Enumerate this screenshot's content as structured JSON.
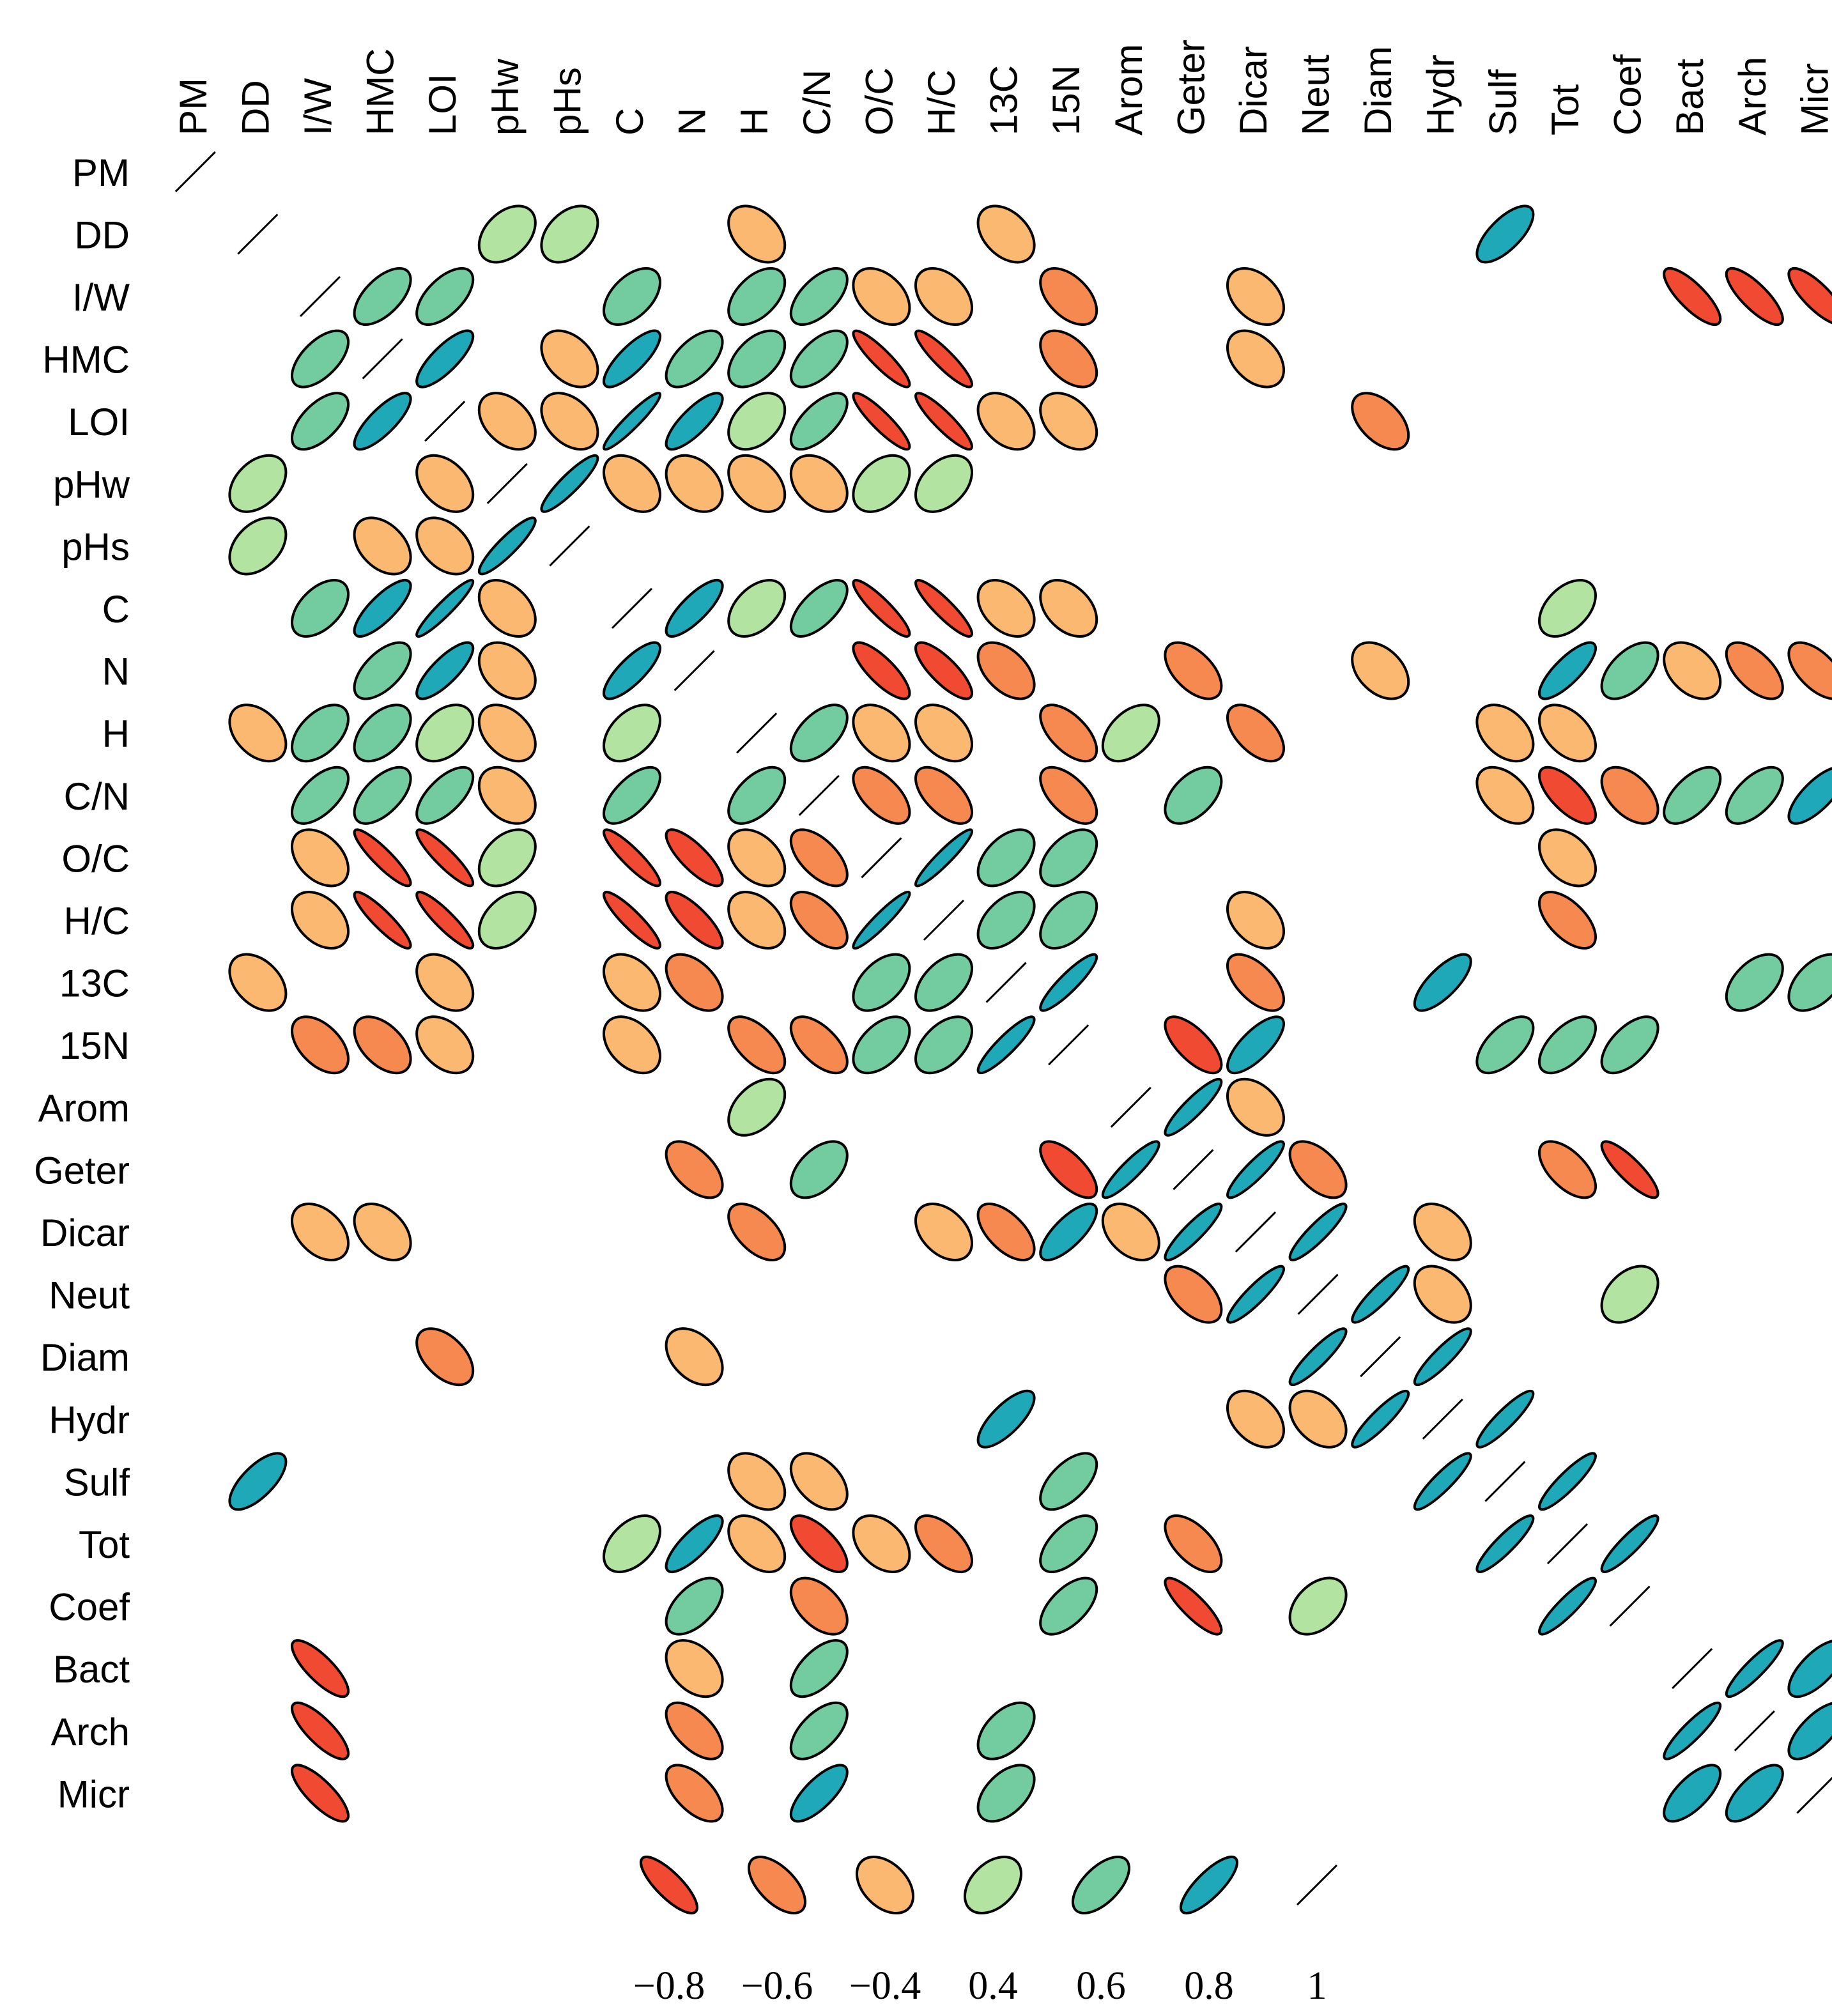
{
  "chart_data": {
    "type": "correlation-matrix",
    "variables": [
      "PM",
      "DD",
      "I/W",
      "HMC",
      "LOI",
      "pHw",
      "pHs",
      "C",
      "N",
      "H",
      "C/N",
      "O/C",
      "H/C",
      "13C",
      "15N",
      "Arom",
      "Geter",
      "Dicar",
      "Neut",
      "Diam",
      "Hydr",
      "Sulf",
      "Tot",
      "Coef",
      "Bact",
      "Arch",
      "Micr"
    ],
    "colors": {
      "-0.8": "#f04a32",
      "-0.6": "#f5894f",
      "-0.4": "#fbb870",
      "0.4": "#b2e3a0",
      "0.6": "#72cc9f",
      "0.8": "#1fa8b8"
    },
    "significant_correlations": [
      {
        "row": "DD",
        "col": "pHw",
        "r": 0.4
      },
      {
        "row": "DD",
        "col": "pHs",
        "r": 0.4
      },
      {
        "row": "DD",
        "col": "H",
        "r": -0.4
      },
      {
        "row": "DD",
        "col": "13C",
        "r": -0.4
      },
      {
        "row": "DD",
        "col": "Sulf",
        "r": 0.7
      },
      {
        "row": "I/W",
        "col": "HMC",
        "r": 0.6
      },
      {
        "row": "I/W",
        "col": "LOI",
        "r": 0.6
      },
      {
        "row": "I/W",
        "col": "C",
        "r": 0.5
      },
      {
        "row": "I/W",
        "col": "H",
        "r": 0.5
      },
      {
        "row": "I/W",
        "col": "C/N",
        "r": 0.6
      },
      {
        "row": "I/W",
        "col": "O/C",
        "r": -0.4
      },
      {
        "row": "I/W",
        "col": "H/C",
        "r": -0.4
      },
      {
        "row": "I/W",
        "col": "15N",
        "r": -0.5
      },
      {
        "row": "I/W",
        "col": "Dicar",
        "r": -0.4
      },
      {
        "row": "I/W",
        "col": "Bact",
        "r": -0.8
      },
      {
        "row": "I/W",
        "col": "Arch",
        "r": -0.8
      },
      {
        "row": "I/W",
        "col": "Micr",
        "r": -0.8
      },
      {
        "row": "HMC",
        "col": "LOI",
        "r": 0.8
      },
      {
        "row": "HMC",
        "col": "pHs",
        "r": -0.4
      },
      {
        "row": "HMC",
        "col": "C",
        "r": 0.8
      },
      {
        "row": "HMC",
        "col": "N",
        "r": 0.6
      },
      {
        "row": "HMC",
        "col": "H",
        "r": 0.5
      },
      {
        "row": "HMC",
        "col": "C/N",
        "r": 0.6
      },
      {
        "row": "HMC",
        "col": "O/C",
        "r": -0.9
      },
      {
        "row": "HMC",
        "col": "H/C",
        "r": -0.9
      },
      {
        "row": "HMC",
        "col": "15N",
        "r": -0.5
      },
      {
        "row": "HMC",
        "col": "Dicar",
        "r": -0.4
      },
      {
        "row": "LOI",
        "col": "pHw",
        "r": -0.4
      },
      {
        "row": "LOI",
        "col": "pHs",
        "r": -0.4
      },
      {
        "row": "LOI",
        "col": "C",
        "r": 0.95
      },
      {
        "row": "LOI",
        "col": "N",
        "r": 0.8
      },
      {
        "row": "LOI",
        "col": "H",
        "r": 0.4
      },
      {
        "row": "LOI",
        "col": "C/N",
        "r": 0.65
      },
      {
        "row": "LOI",
        "col": "O/C",
        "r": -0.9
      },
      {
        "row": "LOI",
        "col": "H/C",
        "r": -0.9
      },
      {
        "row": "LOI",
        "col": "13C",
        "r": -0.4
      },
      {
        "row": "LOI",
        "col": "15N",
        "r": -0.4
      },
      {
        "row": "LOI",
        "col": "Diam",
        "r": -0.5
      },
      {
        "row": "pHw",
        "col": "pHs",
        "r": 0.9
      },
      {
        "row": "pHw",
        "col": "C",
        "r": -0.4
      },
      {
        "row": "pHw",
        "col": "N",
        "r": -0.35
      },
      {
        "row": "pHw",
        "col": "H",
        "r": -0.4
      },
      {
        "row": "pHw",
        "col": "C/N",
        "r": -0.35
      },
      {
        "row": "pHw",
        "col": "O/C",
        "r": 0.4
      },
      {
        "row": "pHw",
        "col": "H/C",
        "r": 0.4
      },
      {
        "row": "C",
        "col": "N",
        "r": 0.8
      },
      {
        "row": "C",
        "col": "H",
        "r": 0.45
      },
      {
        "row": "C",
        "col": "C/N",
        "r": 0.65
      },
      {
        "row": "C",
        "col": "O/C",
        "r": -0.9
      },
      {
        "row": "C",
        "col": "H/C",
        "r": -0.9
      },
      {
        "row": "C",
        "col": "13C",
        "r": -0.4
      },
      {
        "row": "C",
        "col": "15N",
        "r": -0.4
      },
      {
        "row": "C",
        "col": "Tot",
        "r": 0.45
      },
      {
        "row": "N",
        "col": "O/C",
        "r": -0.8
      },
      {
        "row": "N",
        "col": "H/C",
        "r": -0.8
      },
      {
        "row": "N",
        "col": "13C",
        "r": -0.5
      },
      {
        "row": "N",
        "col": "Geter",
        "r": -0.55
      },
      {
        "row": "N",
        "col": "Diam",
        "r": -0.4
      },
      {
        "row": "N",
        "col": "Tot",
        "r": 0.8
      },
      {
        "row": "N",
        "col": "Coef",
        "r": 0.55
      },
      {
        "row": "N",
        "col": "Bact",
        "r": -0.4
      },
      {
        "row": "N",
        "col": "Arch",
        "r": -0.6
      },
      {
        "row": "N",
        "col": "Micr",
        "r": -0.6
      },
      {
        "row": "H",
        "col": "C/N",
        "r": 0.55
      },
      {
        "row": "H",
        "col": "O/C",
        "r": -0.4
      },
      {
        "row": "H",
        "col": "H/C",
        "r": -0.4
      },
      {
        "row": "H",
        "col": "15N",
        "r": -0.6
      },
      {
        "row": "H",
        "col": "Arom",
        "r": 0.45
      },
      {
        "row": "H",
        "col": "Dicar",
        "r": -0.55
      },
      {
        "row": "H",
        "col": "Sulf",
        "r": -0.4
      },
      {
        "row": "H",
        "col": "Tot",
        "r": -0.45
      },
      {
        "row": "C/N",
        "col": "O/C",
        "r": -0.6
      },
      {
        "row": "C/N",
        "col": "H/C",
        "r": -0.6
      },
      {
        "row": "C/N",
        "col": "15N",
        "r": -0.6
      },
      {
        "row": "C/N",
        "col": "Geter",
        "r": 0.5
      },
      {
        "row": "C/N",
        "col": "Sulf",
        "r": -0.45
      },
      {
        "row": "C/N",
        "col": "Tot",
        "r": -0.7
      },
      {
        "row": "C/N",
        "col": "Coef",
        "r": -0.5
      },
      {
        "row": "C/N",
        "col": "Bact",
        "r": 0.6
      },
      {
        "row": "C/N",
        "col": "Arch",
        "r": 0.6
      },
      {
        "row": "C/N",
        "col": "Micr",
        "r": 0.75
      },
      {
        "row": "O/C",
        "col": "H/C",
        "r": 0.95
      },
      {
        "row": "O/C",
        "col": "13C",
        "r": 0.5
      },
      {
        "row": "O/C",
        "col": "15N",
        "r": 0.5
      },
      {
        "row": "O/C",
        "col": "Tot",
        "r": -0.4
      },
      {
        "row": "H/C",
        "col": "13C",
        "r": 0.5
      },
      {
        "row": "H/C",
        "col": "15N",
        "r": 0.5
      },
      {
        "row": "H/C",
        "col": "Dicar",
        "r": -0.4
      },
      {
        "row": "H/C",
        "col": "Tot",
        "r": -0.6
      },
      {
        "row": "13C",
        "col": "15N",
        "r": 0.9
      },
      {
        "row": "13C",
        "col": "Dicar",
        "r": -0.6
      },
      {
        "row": "13C",
        "col": "Hydr",
        "r": 0.75
      },
      {
        "row": "13C",
        "col": "Arch",
        "r": 0.5
      },
      {
        "row": "13C",
        "col": "Micr",
        "r": 0.5
      },
      {
        "row": "15N",
        "col": "Geter",
        "r": -0.7
      },
      {
        "row": "15N",
        "col": "Dicar",
        "r": 0.75
      },
      {
        "row": "15N",
        "col": "Sulf",
        "r": 0.6
      },
      {
        "row": "15N",
        "col": "Tot",
        "r": 0.6
      },
      {
        "row": "15N",
        "col": "Coef",
        "r": 0.6
      },
      {
        "row": "Arom",
        "col": "Geter",
        "r": 0.9
      },
      {
        "row": "Arom",
        "col": "Dicar",
        "r": -0.4
      },
      {
        "row": "Geter",
        "col": "Dicar",
        "r": 0.9
      },
      {
        "row": "Geter",
        "col": "Neut",
        "r": -0.55
      },
      {
        "row": "Geter",
        "col": "Tot",
        "r": -0.6
      },
      {
        "row": "Geter",
        "col": "Coef",
        "r": -0.85
      },
      {
        "row": "Dicar",
        "col": "Neut",
        "r": 0.9
      },
      {
        "row": "Dicar",
        "col": "Hydr",
        "r": -0.4
      },
      {
        "row": "Neut",
        "col": "Diam",
        "r": 0.9
      },
      {
        "row": "Neut",
        "col": "Hydr",
        "r": -0.4
      },
      {
        "row": "Neut",
        "col": "Coef",
        "r": 0.4
      },
      {
        "row": "Diam",
        "col": "Hydr",
        "r": 0.9
      },
      {
        "row": "Hydr",
        "col": "Sulf",
        "r": 0.9
      },
      {
        "row": "Sulf",
        "col": "Tot",
        "r": 0.9
      },
      {
        "row": "Tot",
        "col": "Coef",
        "r": 0.9
      },
      {
        "row": "Bact",
        "col": "Arch",
        "r": 0.9
      },
      {
        "row": "Bact",
        "col": "Micr",
        "r": 0.7
      },
      {
        "row": "Arch",
        "col": "Micr",
        "r": 0.7
      }
    ],
    "legend": [
      {
        "label": "−0.8",
        "r": -0.8
      },
      {
        "label": "−0.6",
        "r": -0.6
      },
      {
        "label": "−0.4",
        "r": -0.4
      },
      {
        "label": "0.4",
        "r": 0.4
      },
      {
        "label": "0.6",
        "r": 0.6
      },
      {
        "label": "0.8",
        "r": 0.8
      },
      {
        "label": "1",
        "r": 1
      }
    ]
  }
}
